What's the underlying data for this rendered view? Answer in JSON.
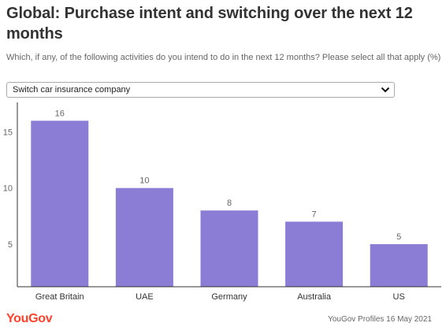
{
  "header": {
    "title": "Global: Purchase intent and switching over the next 12 months",
    "subtitle": "Which, if any, of the following activities do you intend to do in the next 12 months? Please select all that apply (%)"
  },
  "filter": {
    "selected": "Switch car insurance company"
  },
  "footer": {
    "brand": "YouGov",
    "source": "YouGov Profiles 16 May 2021"
  },
  "colors": {
    "bar": "#8b7cd6",
    "axis": "#333333",
    "tick_text": "#666666",
    "brand": "#ff412c"
  },
  "chart_data": {
    "type": "bar",
    "categories": [
      "Great Britain",
      "UAE",
      "Germany",
      "Australia",
      "US"
    ],
    "values": [
      16,
      10,
      8,
      7,
      5
    ],
    "yticks": [
      5,
      10,
      15
    ],
    "ylim": [
      1.2,
      17.5
    ],
    "title": "",
    "xlabel": "",
    "ylabel": ""
  }
}
